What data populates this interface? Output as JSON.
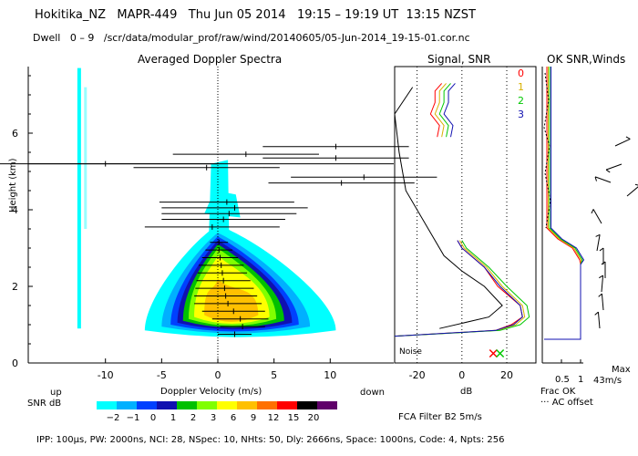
{
  "header": {
    "site": "Hokitika_NZ",
    "instrument": "MAPR-449",
    "date": "Thu Jun 05 2014",
    "utc_time": "19:15 – 19:19 UT",
    "local_time": "13:15 NZST",
    "dwell_label": "Dwell",
    "dwell_range": "0 – 9",
    "file_path": "/scr/data/modular_prof/raw/wind/20140605/05-Jun-2014_19-15-01.cor.nc"
  },
  "footer": {
    "params": "IPP: 100μs,  PW: 2000ns,  NCI:  28,  NSpec: 10,  NHts: 50,  Dly: 2666ns,  Space: 1000ns,  Code: 4,  Npts: 256",
    "filter": "FCA Filter B2   5m/s"
  },
  "colors": {
    "snr_scale": [
      "#00ffff",
      "#00b0ff",
      "#0040ff",
      "#1010b0",
      "#00c000",
      "#80ff00",
      "#ffff00",
      "#ffc000",
      "#ff7000",
      "#ff0000",
      "#000000",
      "#60006a"
    ],
    "channel": [
      "#ff0000",
      "#d8b000",
      "#00c800",
      "#1010b0"
    ]
  },
  "chart_data": [
    {
      "type": "heatmap",
      "title": "Averaged Doppler Spectra",
      "xlabel": "Doppler Velocity (m/s)",
      "ylabel": "Height (km)",
      "xlim": [
        -16,
        16
      ],
      "ylim": [
        0,
        7.8
      ],
      "x_ticks": [
        -10,
        -5,
        0,
        5,
        10
      ],
      "y_ticks": [
        0,
        2,
        4,
        6
      ],
      "direction_labels": {
        "left": "up",
        "right": "down"
      },
      "colorbar": {
        "label": "SNR dB",
        "ticks": [
          "−2",
          "−1",
          "0",
          "1",
          "2",
          "3",
          "6",
          "9",
          "12",
          "15",
          "20"
        ]
      },
      "profile_points": [
        {
          "h": 0.75,
          "v": 1.5,
          "err": 1.5
        },
        {
          "h": 0.95,
          "v": 2.2,
          "err": 2.0
        },
        {
          "h": 1.15,
          "v": 2.0,
          "err": 2.5
        },
        {
          "h": 1.35,
          "v": 1.4,
          "err": 2.8
        },
        {
          "h": 1.55,
          "v": 0.9,
          "err": 3.0
        },
        {
          "h": 1.75,
          "v": 0.7,
          "err": 2.8
        },
        {
          "h": 1.95,
          "v": 0.6,
          "err": 2.6
        },
        {
          "h": 2.15,
          "v": 0.5,
          "err": 2.4
        },
        {
          "h": 2.35,
          "v": 0.4,
          "err": 2.2
        },
        {
          "h": 2.55,
          "v": 0.3,
          "err": 2.0
        },
        {
          "h": 2.75,
          "v": 0.2,
          "err": 1.6
        },
        {
          "h": 2.95,
          "v": 0.1,
          "err": 1.2
        },
        {
          "h": 3.15,
          "v": 0.1,
          "err": 0.8
        },
        {
          "h": 3.55,
          "v": -0.5,
          "err": 6.0
        },
        {
          "h": 3.75,
          "v": 0.5,
          "err": 5.5
        },
        {
          "h": 3.9,
          "v": 1.0,
          "err": 6.0
        },
        {
          "h": 4.05,
          "v": 1.5,
          "err": 6.5
        },
        {
          "h": 4.2,
          "v": 0.8,
          "err": 6.0
        },
        {
          "h": 4.7,
          "v": 11.0,
          "err": 6.5
        },
        {
          "h": 4.85,
          "v": 13.0,
          "err": 6.5
        },
        {
          "h": 5.1,
          "v": -1.0,
          "err": 6.5
        },
        {
          "h": 5.2,
          "v": -10.0,
          "err": 10.0
        },
        {
          "h": 5.35,
          "v": 10.5,
          "err": 6.5
        },
        {
          "h": 5.45,
          "v": 2.5,
          "err": 6.5
        },
        {
          "h": 5.65,
          "v": 10.5,
          "err": 6.5
        }
      ]
    },
    {
      "type": "line",
      "title": "Signal, SNR",
      "xlabel": "dB",
      "xlim": [
        -30,
        33
      ],
      "x_ticks": [
        -20,
        0,
        20
      ],
      "noise_label": "Noise",
      "signal_series": [
        {
          "name": "0",
          "color": "#ff0000",
          "points": [
            [
              0.7,
              -30
            ],
            [
              0.85,
              15
            ],
            [
              1.0,
              22
            ],
            [
              1.2,
              27
            ],
            [
              1.5,
              26
            ],
            [
              2.0,
              16
            ],
            [
              2.5,
              10
            ],
            [
              3.0,
              0
            ],
            [
              3.2,
              -2
            ]
          ]
        },
        {
          "name": "1",
          "color": "#d8b000",
          "points": [
            [
              0.7,
              -30
            ],
            [
              0.85,
              16
            ],
            [
              1.0,
              24
            ],
            [
              1.2,
              28
            ],
            [
              1.5,
              27
            ],
            [
              2.0,
              18
            ],
            [
              2.5,
              11
            ],
            [
              3.0,
              1
            ],
            [
              3.2,
              -1
            ]
          ]
        },
        {
          "name": "2",
          "color": "#00c800",
          "points": [
            [
              0.7,
              -30
            ],
            [
              0.85,
              17
            ],
            [
              1.0,
              26
            ],
            [
              1.2,
              30
            ],
            [
              1.5,
              29
            ],
            [
              2.0,
              20
            ],
            [
              2.5,
              12
            ],
            [
              3.0,
              2
            ],
            [
              3.2,
              0
            ]
          ]
        },
        {
          "name": "3",
          "color": "#1010b0",
          "points": [
            [
              0.7,
              -30
            ],
            [
              0.85,
              15
            ],
            [
              1.0,
              23
            ],
            [
              1.2,
              27
            ],
            [
              1.5,
              26
            ],
            [
              2.0,
              17
            ],
            [
              2.5,
              10
            ],
            [
              3.0,
              0
            ],
            [
              3.2,
              -2
            ]
          ]
        }
      ],
      "snr_trace": [
        [
          0.9,
          -10
        ],
        [
          1.2,
          12
        ],
        [
          1.5,
          18
        ],
        [
          2.0,
          10
        ],
        [
          2.4,
          0
        ],
        [
          2.8,
          -8
        ],
        [
          3.5,
          -15
        ],
        [
          4.5,
          -25
        ],
        [
          5.5,
          -28
        ],
        [
          6.5,
          -30
        ],
        [
          7.2,
          -22
        ]
      ],
      "noise_markers": [
        [
          0.25,
          14
        ],
        [
          0.25,
          17
        ]
      ]
    },
    {
      "type": "line",
      "title": "OK SNR,Winds",
      "channel_labels": [
        "0",
        "1",
        "2",
        "3"
      ],
      "x_ticks": [
        "0.5",
        "1"
      ],
      "xlabels": [
        "Frac OK",
        "··· AC offset"
      ],
      "max_label": "Max",
      "max_wind": "43m/s"
    }
  ]
}
